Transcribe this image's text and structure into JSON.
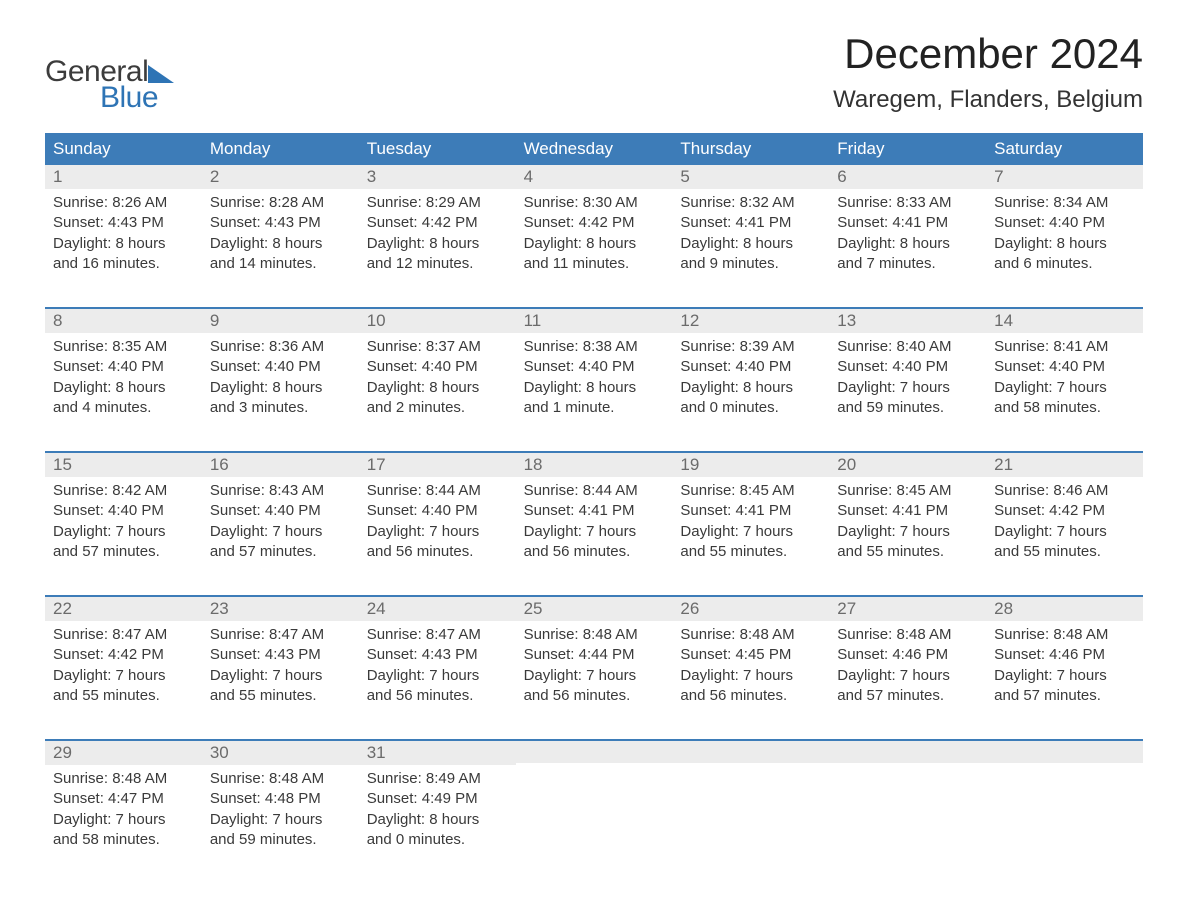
{
  "brand": {
    "part1": "General",
    "part2": "Blue"
  },
  "header": {
    "month_title": "December 2024",
    "location": "Waregem, Flanders, Belgium"
  },
  "style": {
    "header_bg": "#3d7cb8",
    "header_text": "#ffffff",
    "day_number_bg": "#ececec",
    "day_number_color": "#6b6b6b",
    "body_text": "#3a3a3a",
    "row_border": "#3d7cb8",
    "title_color": "#222222",
    "location_color": "#333333",
    "logo_gray": "#3c3c3c",
    "logo_blue": "#2e74b5",
    "background": "#ffffff",
    "month_title_fontsize": 42,
    "location_fontsize": 24,
    "weekday_fontsize": 17,
    "daynum_fontsize": 17,
    "content_fontsize": 15
  },
  "weekdays": [
    "Sunday",
    "Monday",
    "Tuesday",
    "Wednesday",
    "Thursday",
    "Friday",
    "Saturday"
  ],
  "weeks": [
    [
      {
        "num": "1",
        "sunrise": "Sunrise: 8:26 AM",
        "sunset": "Sunset: 4:43 PM",
        "dl1": "Daylight: 8 hours",
        "dl2": "and 16 minutes."
      },
      {
        "num": "2",
        "sunrise": "Sunrise: 8:28 AM",
        "sunset": "Sunset: 4:43 PM",
        "dl1": "Daylight: 8 hours",
        "dl2": "and 14 minutes."
      },
      {
        "num": "3",
        "sunrise": "Sunrise: 8:29 AM",
        "sunset": "Sunset: 4:42 PM",
        "dl1": "Daylight: 8 hours",
        "dl2": "and 12 minutes."
      },
      {
        "num": "4",
        "sunrise": "Sunrise: 8:30 AM",
        "sunset": "Sunset: 4:42 PM",
        "dl1": "Daylight: 8 hours",
        "dl2": "and 11 minutes."
      },
      {
        "num": "5",
        "sunrise": "Sunrise: 8:32 AM",
        "sunset": "Sunset: 4:41 PM",
        "dl1": "Daylight: 8 hours",
        "dl2": "and 9 minutes."
      },
      {
        "num": "6",
        "sunrise": "Sunrise: 8:33 AM",
        "sunset": "Sunset: 4:41 PM",
        "dl1": "Daylight: 8 hours",
        "dl2": "and 7 minutes."
      },
      {
        "num": "7",
        "sunrise": "Sunrise: 8:34 AM",
        "sunset": "Sunset: 4:40 PM",
        "dl1": "Daylight: 8 hours",
        "dl2": "and 6 minutes."
      }
    ],
    [
      {
        "num": "8",
        "sunrise": "Sunrise: 8:35 AM",
        "sunset": "Sunset: 4:40 PM",
        "dl1": "Daylight: 8 hours",
        "dl2": "and 4 minutes."
      },
      {
        "num": "9",
        "sunrise": "Sunrise: 8:36 AM",
        "sunset": "Sunset: 4:40 PM",
        "dl1": "Daylight: 8 hours",
        "dl2": "and 3 minutes."
      },
      {
        "num": "10",
        "sunrise": "Sunrise: 8:37 AM",
        "sunset": "Sunset: 4:40 PM",
        "dl1": "Daylight: 8 hours",
        "dl2": "and 2 minutes."
      },
      {
        "num": "11",
        "sunrise": "Sunrise: 8:38 AM",
        "sunset": "Sunset: 4:40 PM",
        "dl1": "Daylight: 8 hours",
        "dl2": "and 1 minute."
      },
      {
        "num": "12",
        "sunrise": "Sunrise: 8:39 AM",
        "sunset": "Sunset: 4:40 PM",
        "dl1": "Daylight: 8 hours",
        "dl2": "and 0 minutes."
      },
      {
        "num": "13",
        "sunrise": "Sunrise: 8:40 AM",
        "sunset": "Sunset: 4:40 PM",
        "dl1": "Daylight: 7 hours",
        "dl2": "and 59 minutes."
      },
      {
        "num": "14",
        "sunrise": "Sunrise: 8:41 AM",
        "sunset": "Sunset: 4:40 PM",
        "dl1": "Daylight: 7 hours",
        "dl2": "and 58 minutes."
      }
    ],
    [
      {
        "num": "15",
        "sunrise": "Sunrise: 8:42 AM",
        "sunset": "Sunset: 4:40 PM",
        "dl1": "Daylight: 7 hours",
        "dl2": "and 57 minutes."
      },
      {
        "num": "16",
        "sunrise": "Sunrise: 8:43 AM",
        "sunset": "Sunset: 4:40 PM",
        "dl1": "Daylight: 7 hours",
        "dl2": "and 57 minutes."
      },
      {
        "num": "17",
        "sunrise": "Sunrise: 8:44 AM",
        "sunset": "Sunset: 4:40 PM",
        "dl1": "Daylight: 7 hours",
        "dl2": "and 56 minutes."
      },
      {
        "num": "18",
        "sunrise": "Sunrise: 8:44 AM",
        "sunset": "Sunset: 4:41 PM",
        "dl1": "Daylight: 7 hours",
        "dl2": "and 56 minutes."
      },
      {
        "num": "19",
        "sunrise": "Sunrise: 8:45 AM",
        "sunset": "Sunset: 4:41 PM",
        "dl1": "Daylight: 7 hours",
        "dl2": "and 55 minutes."
      },
      {
        "num": "20",
        "sunrise": "Sunrise: 8:45 AM",
        "sunset": "Sunset: 4:41 PM",
        "dl1": "Daylight: 7 hours",
        "dl2": "and 55 minutes."
      },
      {
        "num": "21",
        "sunrise": "Sunrise: 8:46 AM",
        "sunset": "Sunset: 4:42 PM",
        "dl1": "Daylight: 7 hours",
        "dl2": "and 55 minutes."
      }
    ],
    [
      {
        "num": "22",
        "sunrise": "Sunrise: 8:47 AM",
        "sunset": "Sunset: 4:42 PM",
        "dl1": "Daylight: 7 hours",
        "dl2": "and 55 minutes."
      },
      {
        "num": "23",
        "sunrise": "Sunrise: 8:47 AM",
        "sunset": "Sunset: 4:43 PM",
        "dl1": "Daylight: 7 hours",
        "dl2": "and 55 minutes."
      },
      {
        "num": "24",
        "sunrise": "Sunrise: 8:47 AM",
        "sunset": "Sunset: 4:43 PM",
        "dl1": "Daylight: 7 hours",
        "dl2": "and 56 minutes."
      },
      {
        "num": "25",
        "sunrise": "Sunrise: 8:48 AM",
        "sunset": "Sunset: 4:44 PM",
        "dl1": "Daylight: 7 hours",
        "dl2": "and 56 minutes."
      },
      {
        "num": "26",
        "sunrise": "Sunrise: 8:48 AM",
        "sunset": "Sunset: 4:45 PM",
        "dl1": "Daylight: 7 hours",
        "dl2": "and 56 minutes."
      },
      {
        "num": "27",
        "sunrise": "Sunrise: 8:48 AM",
        "sunset": "Sunset: 4:46 PM",
        "dl1": "Daylight: 7 hours",
        "dl2": "and 57 minutes."
      },
      {
        "num": "28",
        "sunrise": "Sunrise: 8:48 AM",
        "sunset": "Sunset: 4:46 PM",
        "dl1": "Daylight: 7 hours",
        "dl2": "and 57 minutes."
      }
    ],
    [
      {
        "num": "29",
        "sunrise": "Sunrise: 8:48 AM",
        "sunset": "Sunset: 4:47 PM",
        "dl1": "Daylight: 7 hours",
        "dl2": "and 58 minutes."
      },
      {
        "num": "30",
        "sunrise": "Sunrise: 8:48 AM",
        "sunset": "Sunset: 4:48 PM",
        "dl1": "Daylight: 7 hours",
        "dl2": "and 59 minutes."
      },
      {
        "num": "31",
        "sunrise": "Sunrise: 8:49 AM",
        "sunset": "Sunset: 4:49 PM",
        "dl1": "Daylight: 8 hours",
        "dl2": "and 0 minutes."
      },
      null,
      null,
      null,
      null
    ]
  ]
}
